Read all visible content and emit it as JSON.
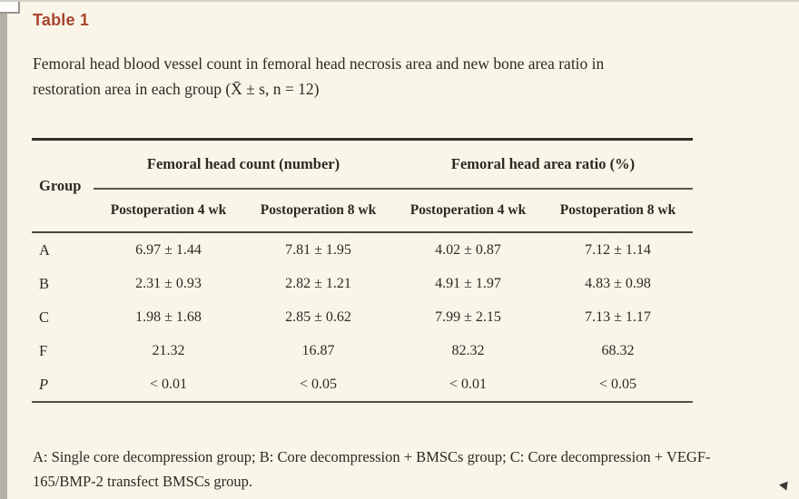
{
  "header": {
    "title": "Table 1",
    "caption_line1": "Femoral head blood vessel count in femoral head necrosis area and new bone area ratio in",
    "caption_line2": "restoration area in each group (X̄ ± s, n = 12)"
  },
  "table": {
    "group_header": "Group",
    "span_headers": [
      "Femoral head count (number)",
      "Femoral head area ratio (%)"
    ],
    "sub_headers": [
      "Postoperation 4 wk",
      "Postoperation 8 wk",
      "Postoperation 4 wk",
      "Postoperation 8 wk"
    ],
    "rows": [
      {
        "group": "A",
        "values": [
          "6.97 ± 1.44",
          "7.81 ± 1.95",
          "4.02 ± 0.87",
          "7.12 ± 1.14"
        ]
      },
      {
        "group": "B",
        "values": [
          "2.31 ± 0.93",
          "2.82 ± 1.21",
          "4.91 ± 1.97",
          "4.83 ± 0.98"
        ]
      },
      {
        "group": "C",
        "values": [
          "1.98 ± 1.68",
          "2.85 ± 0.62",
          "7.99 ± 2.15",
          "7.13 ± 1.17"
        ]
      },
      {
        "group": "F",
        "values": [
          "21.32",
          "16.87",
          "82.32",
          "68.32"
        ]
      },
      {
        "group": "P",
        "values": [
          "< 0.01",
          "< 0.05",
          "< 0.01",
          "< 0.05"
        ]
      }
    ]
  },
  "footnote": {
    "line1": "A: Single core decompression group; B: Core decompression + BMSCs group; C: Core decompression + VEGF-",
    "line2": "165/BMP-2 transfect BMSCs group."
  },
  "colors": {
    "title_accent": "#a8432d",
    "page_background": "#f9f5e9",
    "text": "#2e2a22",
    "rule_dark": "#332f27"
  }
}
